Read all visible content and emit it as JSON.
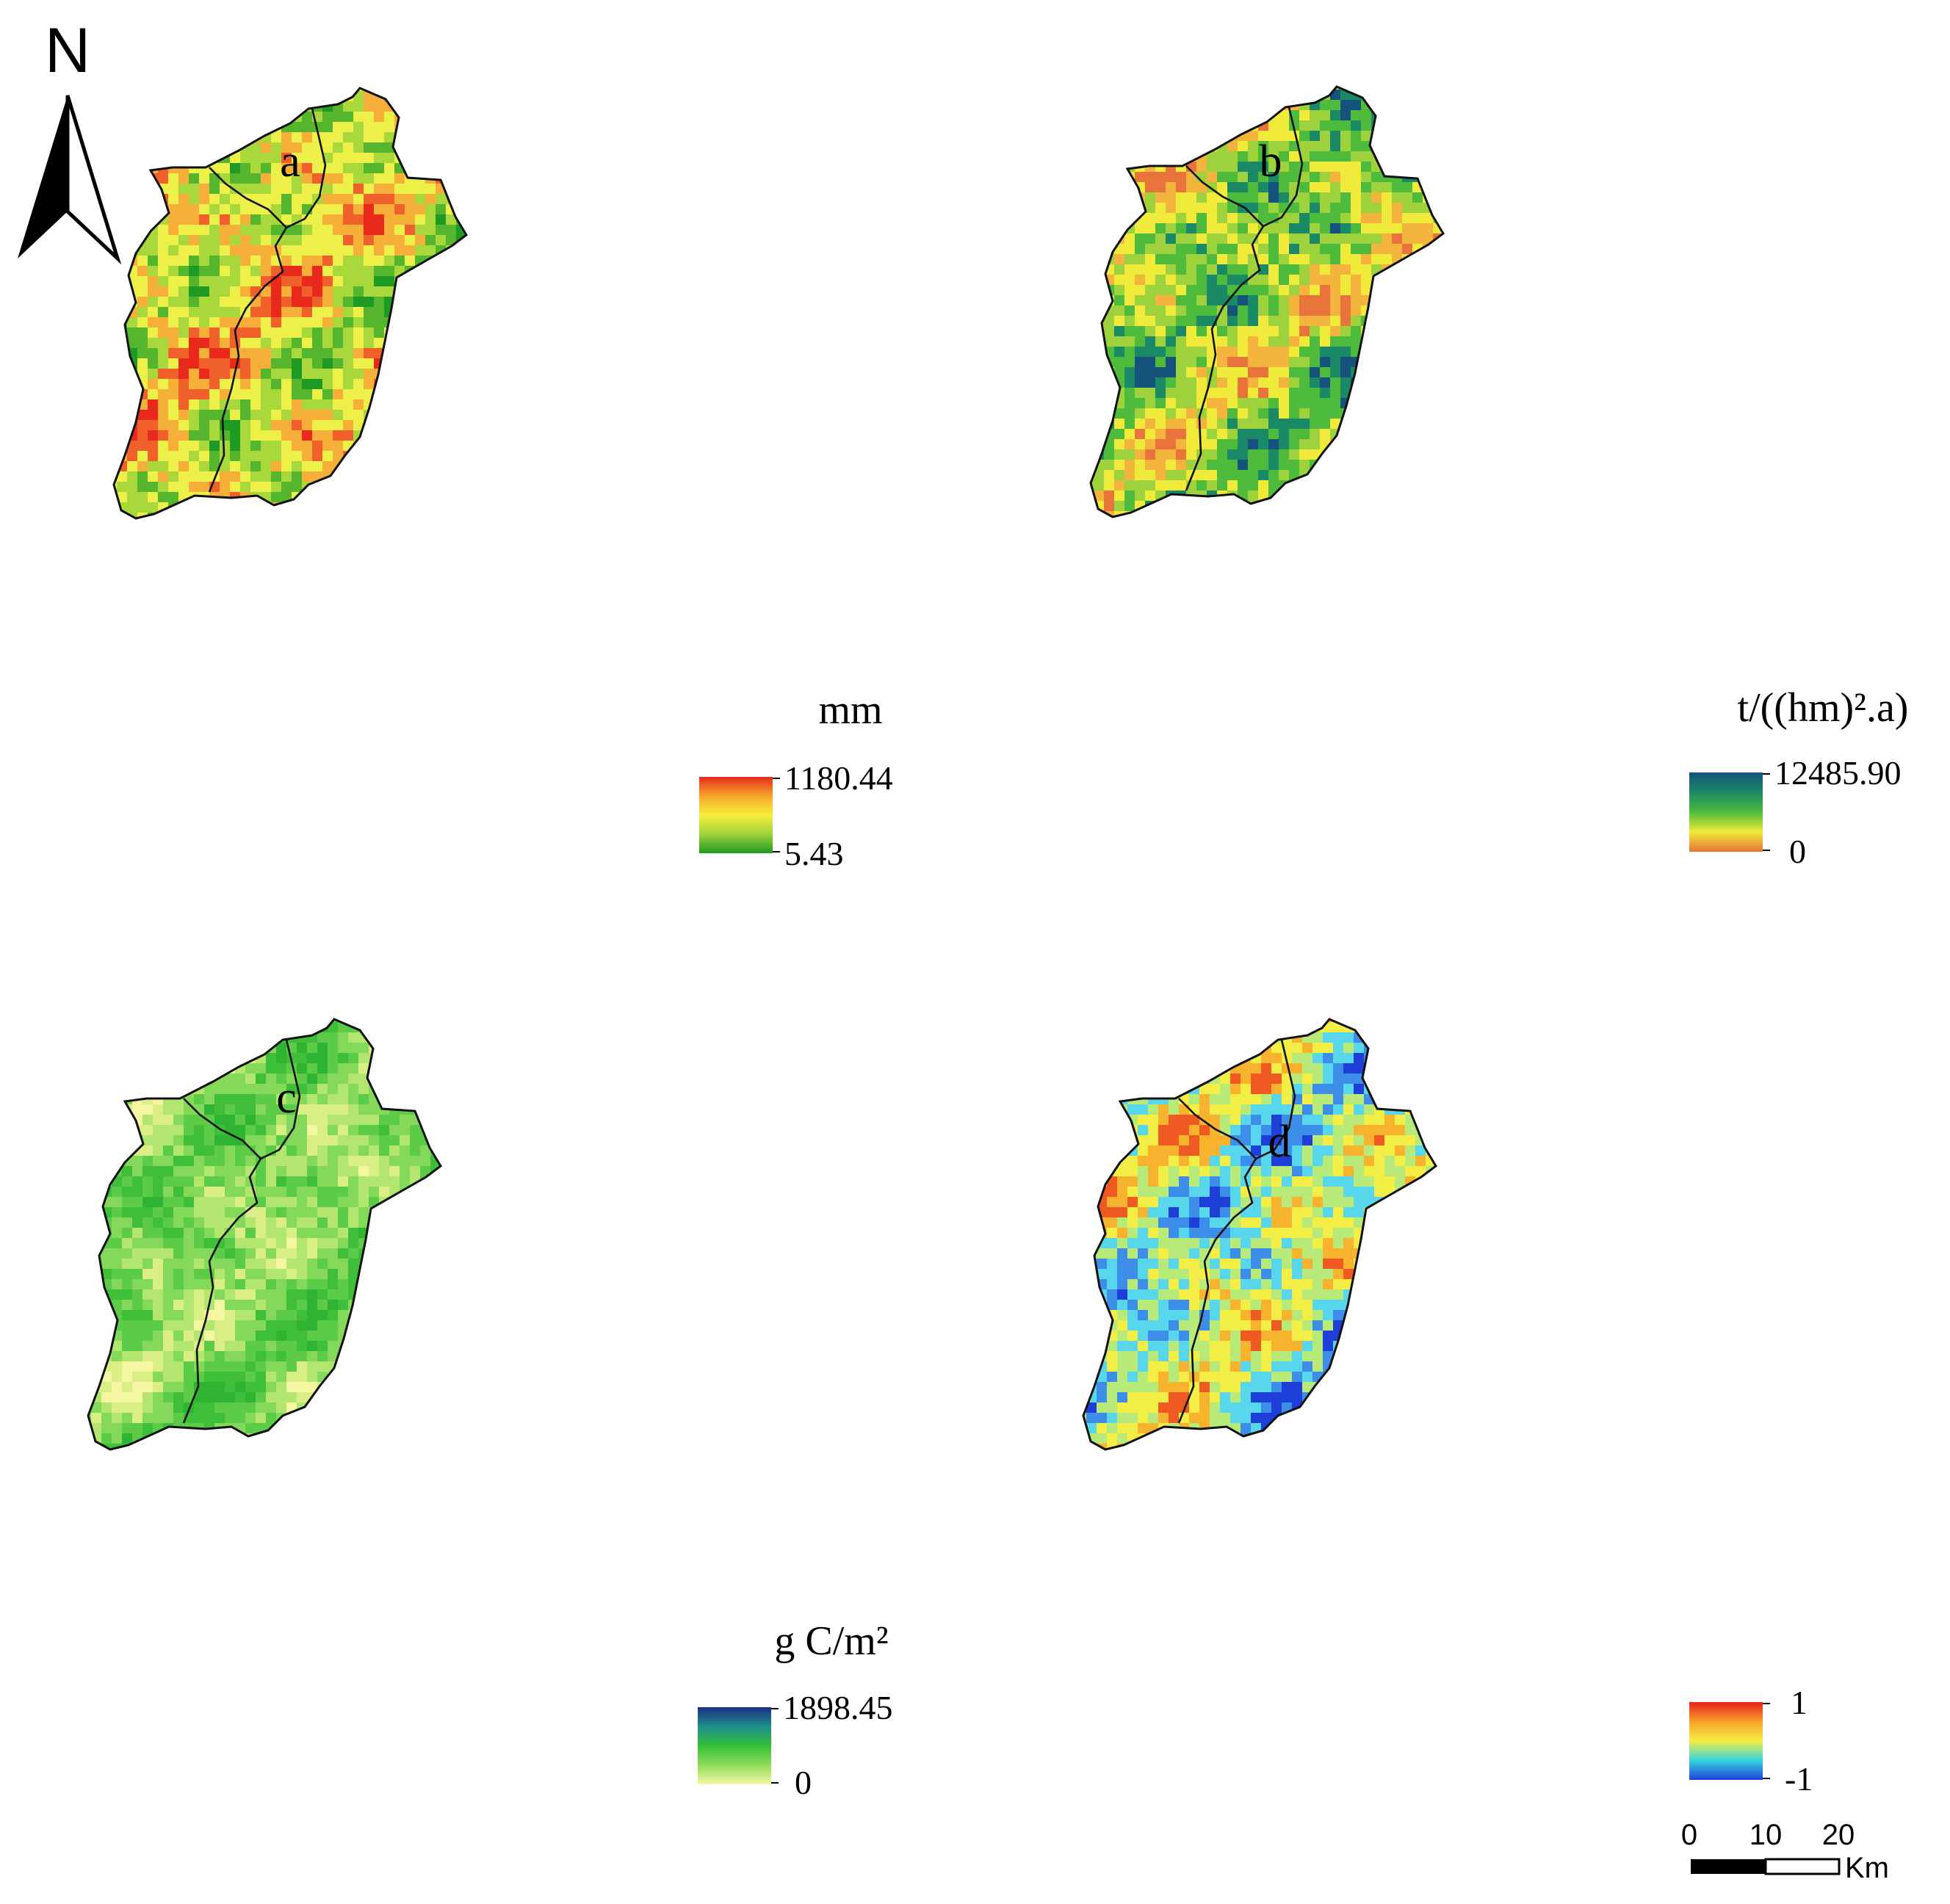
{
  "north_arrow": {
    "label": "N",
    "icon": "north-arrow-icon"
  },
  "scale_bar": {
    "ticks": [
      "0",
      "10",
      "20"
    ],
    "unit": "Km"
  },
  "panels": [
    {
      "letter": "a",
      "unit": "mm",
      "legend": {
        "max": "1180.44",
        "min": "5.43",
        "colors": [
          "#e8291c",
          "#f6a52a",
          "#f7ef3c",
          "#9fd23a",
          "#1f9a22"
        ]
      },
      "palette": [
        "#1f9a22",
        "#55b52c",
        "#a9d83c",
        "#eef04a",
        "#f6b03a",
        "#f0602a",
        "#e8291c"
      ]
    },
    {
      "letter": "b",
      "unit": "t/((hm)².a)",
      "legend": {
        "max": "12485.90",
        "min": "0",
        "colors": [
          "#15537d",
          "#1a8a66",
          "#4fbb3c",
          "#f0ea3a",
          "#e8743c"
        ]
      },
      "palette": [
        "#e8743c",
        "#f3b43e",
        "#f0ea3a",
        "#9ed23c",
        "#4fbb3c",
        "#1a8a66",
        "#15537d"
      ]
    },
    {
      "letter": "c",
      "unit": "g C/m²",
      "legend": {
        "max": "1898.45",
        "min": "0",
        "colors": [
          "#1c2f86",
          "#1c8f8c",
          "#34c038",
          "#8fdb5a",
          "#f6f7a4"
        ]
      },
      "palette": [
        "#f4f6a2",
        "#d9ef86",
        "#b2e66e",
        "#84d85a",
        "#5ccb48",
        "#3fbe3a",
        "#2eb332"
      ]
    },
    {
      "letter": "d",
      "unit": "",
      "legend": {
        "max": "1",
        "min": "-1",
        "colors": [
          "#e8201c",
          "#f7a12a",
          "#f3ee46",
          "#35d6e0",
          "#1d3fd8"
        ]
      },
      "palette": [
        "#1d3fd8",
        "#3d8ee8",
        "#58d6ec",
        "#b8ea7a",
        "#f3ee46",
        "#f7b22e",
        "#ef5a22"
      ]
    }
  ]
}
